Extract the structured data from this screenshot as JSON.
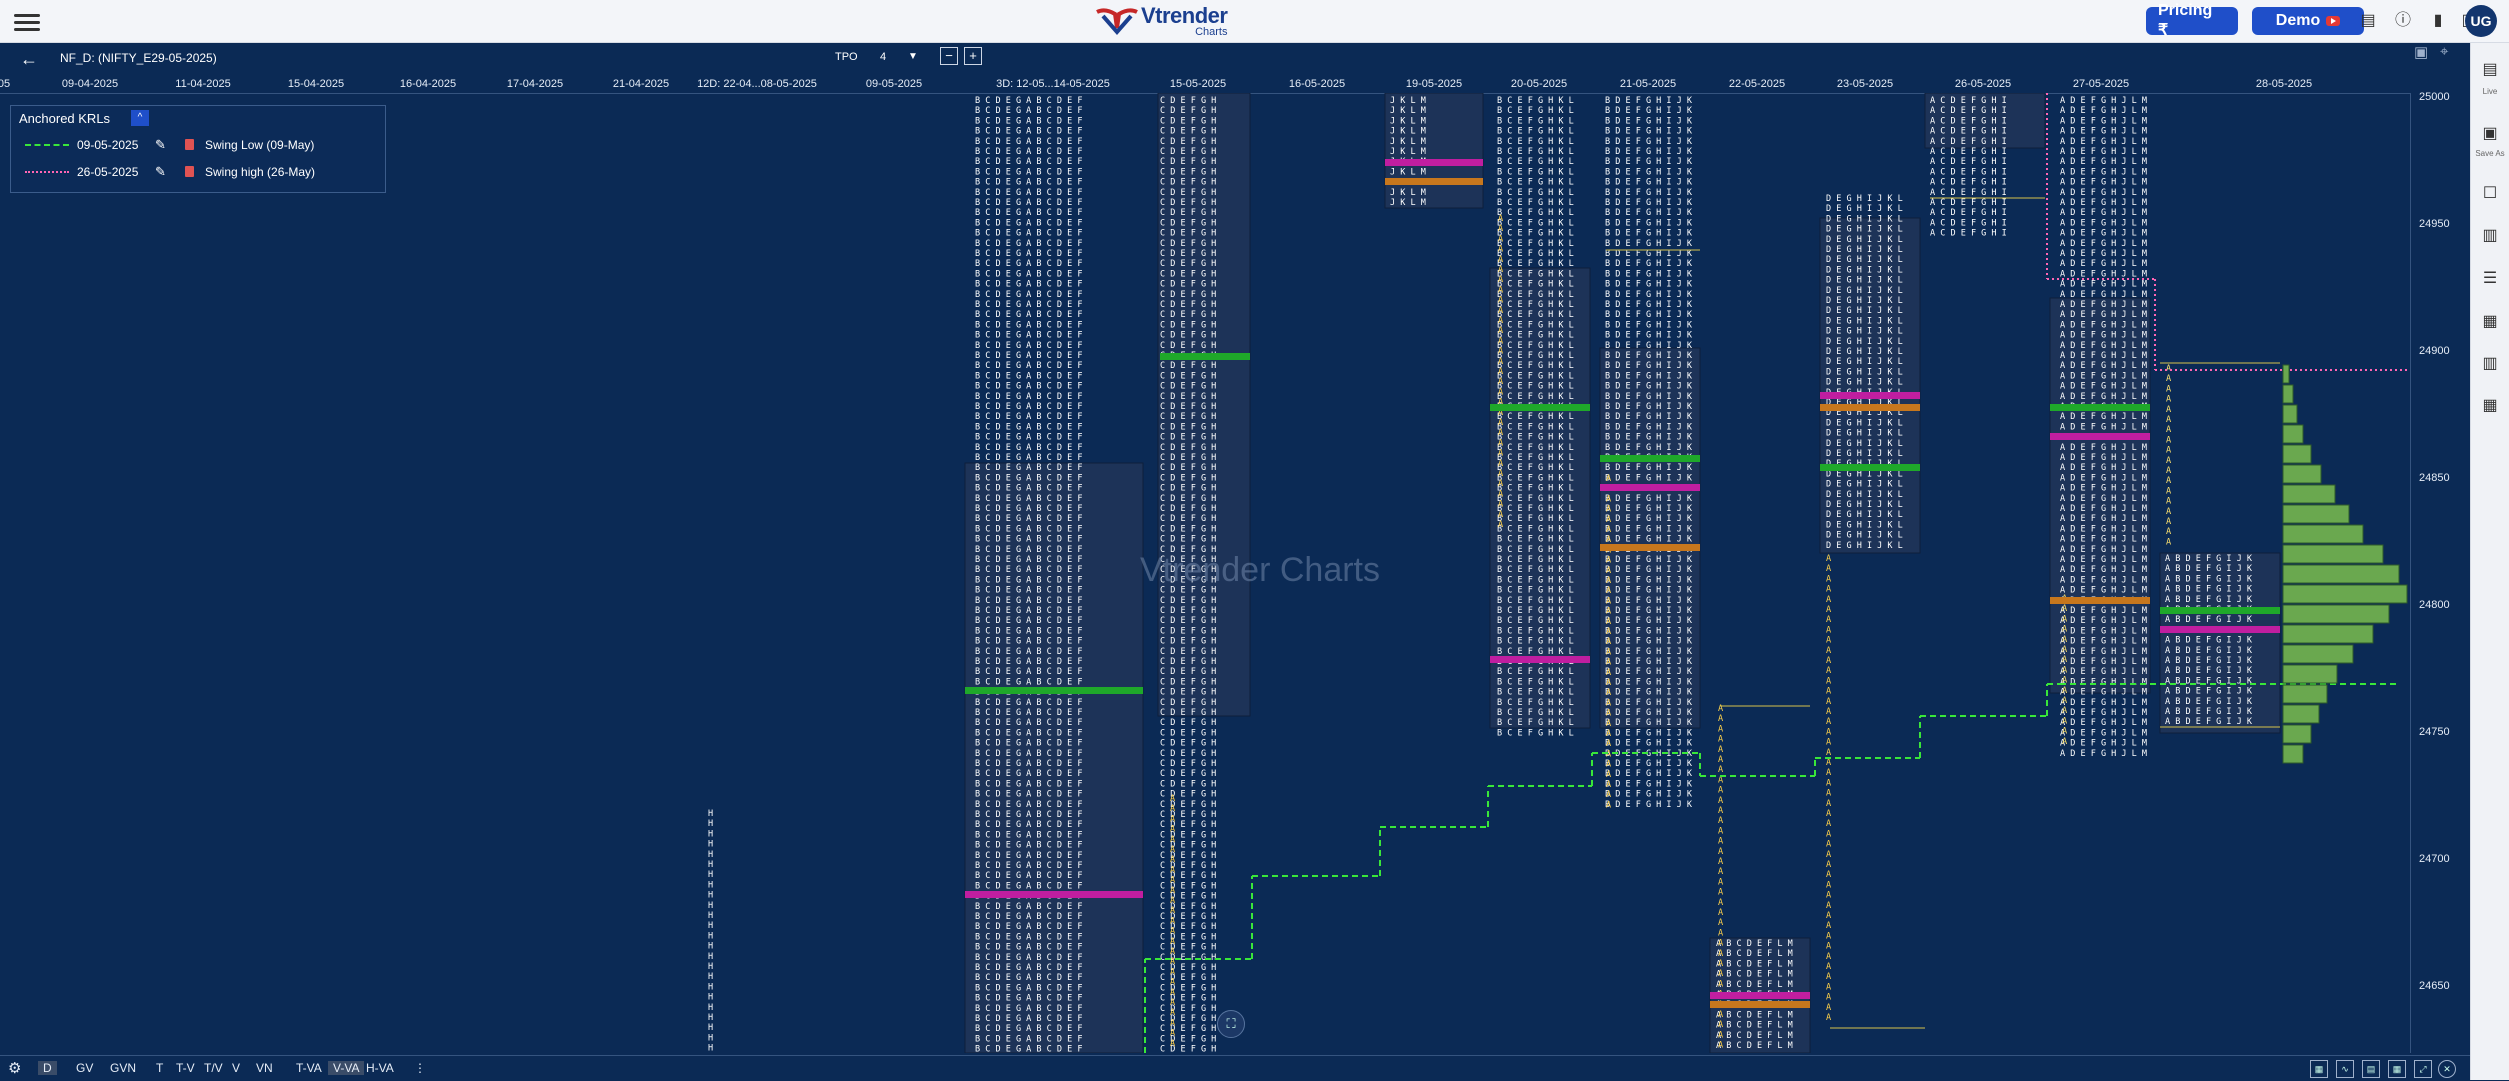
{
  "header": {
    "brand": "Vtrender",
    "brand_sub": "Charts",
    "pricing_label": "Pricing ₹",
    "demo_label": "Demo",
    "avatar": "UG",
    "icons": [
      "menu-icon",
      "document-icon",
      "info-icon",
      "bookmark-icon",
      "bookmarks-icon"
    ]
  },
  "toolbar": {
    "symbol": "NF_D: (NIFTY_E29-05-2025)",
    "tpo_label": "TPO",
    "tpo_value": "4",
    "minus": "−",
    "plus": "+"
  },
  "date_axis": [
    {
      "label": "05"
    },
    {
      "label": "09-04-2025"
    },
    {
      "label": "11-04-2025"
    },
    {
      "label": "15-04-2025"
    },
    {
      "label": "16-04-2025"
    },
    {
      "label": "17-04-2025"
    },
    {
      "label": "21-04-2025"
    },
    {
      "label": "12D: 22-04...08-05-2025"
    },
    {
      "label": "09-05-2025"
    },
    {
      "label": "3D: 12-05...14-05-2025"
    },
    {
      "label": "15-05-2025"
    },
    {
      "label": "16-05-2025"
    },
    {
      "label": "19-05-2025"
    },
    {
      "label": "20-05-2025"
    },
    {
      "label": "21-05-2025"
    },
    {
      "label": "22-05-2025"
    },
    {
      "label": "23-05-2025"
    },
    {
      "label": "26-05-2025"
    },
    {
      "label": "27-05-2025"
    },
    {
      "label": "28-05-2025"
    }
  ],
  "price_axis": [
    "25000",
    "24950",
    "24900",
    "24850",
    "24800",
    "24750",
    "24700",
    "24650"
  ],
  "krl": {
    "title": "Anchored KRLs",
    "toggle": "^",
    "rows": [
      {
        "date": "09-05-2025",
        "name": "Swing Low (09-May)",
        "color": "#39e639",
        "style": "dashed"
      },
      {
        "date": "26-05-2025",
        "name": "Swing high (26-May)",
        "color": "#ff66b3",
        "style": "dotted"
      }
    ]
  },
  "watermark": "Vtrender Charts",
  "sidebar": {
    "live_label": "Live",
    "save_label": "Save As"
  },
  "bottombar": {
    "items": [
      "D",
      "GV",
      "GVN",
      "T",
      "T-V",
      "T/V",
      "V",
      "VN",
      "T-VA",
      "V-VA",
      "H-VA"
    ],
    "active": [
      "D",
      "V-VA"
    ],
    "more": "⋮"
  }
}
